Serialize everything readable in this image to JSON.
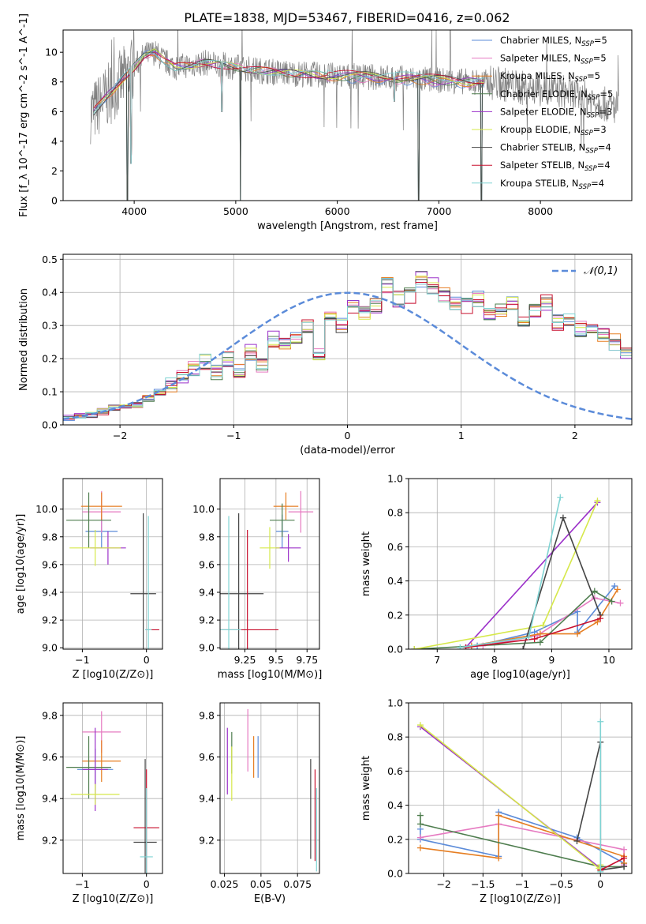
{
  "figure": {
    "title": "PLATE=1838, MJD=53467, FIBERID=0416, z=0.062"
  },
  "palette": {
    "chab_miles": "#5b8bd9",
    "salp_miles": "#e67ac1",
    "krou_miles": "#e67e22",
    "chab_elodie": "#4e7d4e",
    "salp_elodie": "#9b30c9",
    "krou_elodie": "#d6e84a",
    "chab_stelib": "#444444",
    "salp_stelib": "#c8102e",
    "krou_stelib": "#7fd3d3",
    "data": "#808080",
    "grid": "#b0b0b0",
    "normal": "#5b8bd9"
  },
  "chart_data": [
    {
      "id": "spectrum",
      "type": "line",
      "title": "PLATE=1838, MJD=53467, FIBERID=0416, z=0.062",
      "xlabel": "wavelength [Angstrom, rest frame]",
      "ylabel": "Flux [f_λ 10^-17 erg cm^-2 s^-1 A^-1]",
      "xlim": [
        3300,
        8900
      ],
      "ylim": [
        0,
        11.5
      ],
      "xticks": [
        4000,
        5000,
        6000,
        7000,
        8000
      ],
      "yticks": [
        0,
        2,
        4,
        6,
        8,
        10
      ],
      "grid": false,
      "legend_position": "top-right",
      "legend": [
        {
          "main": "Chabrier MILES, N",
          "sub": "SSP",
          "tail": "=5",
          "color_key": "chab_miles"
        },
        {
          "main": "Salpeter MILES, N",
          "sub": "SSP",
          "tail": "=5",
          "color_key": "salp_miles"
        },
        {
          "main": "Kroupa MILES, N",
          "sub": "SSP",
          "tail": "=5",
          "color_key": "krou_miles"
        },
        {
          "main": "Chabrier ELODIE, N",
          "sub": "SSP",
          "tail": "=5",
          "color_key": "chab_elodie"
        },
        {
          "main": "Salpeter ELODIE, N",
          "sub": "SSP",
          "tail": "=3",
          "color_key": "salp_elodie"
        },
        {
          "main": "Kroupa ELODIE, N",
          "sub": "SSP",
          "tail": "=3",
          "color_key": "krou_elodie"
        },
        {
          "main": "Chabrier STELIB, N",
          "sub": "SSP",
          "tail": "=4",
          "color_key": "chab_stelib"
        },
        {
          "main": "Salpeter STELIB, N",
          "sub": "SSP",
          "tail": "=4",
          "color_key": "salp_stelib"
        },
        {
          "main": "Kroupa STELIB, N",
          "sub": "SSP",
          "tail": "=4",
          "color_key": "krou_stelib"
        }
      ],
      "continuum_x": [
        3600,
        3700,
        3800,
        3900,
        4000,
        4100,
        4200,
        4300,
        4400,
        4500,
        4700,
        5000,
        5200,
        5500,
        6000,
        6500,
        7000,
        7400,
        7600,
        7800,
        8000,
        8200,
        8400,
        8600,
        8700
      ],
      "continuum_y": [
        6.0,
        6.8,
        7.5,
        8.3,
        9.0,
        9.8,
        10.0,
        9.4,
        9.0,
        9.1,
        9.3,
        9.0,
        8.8,
        8.6,
        8.4,
        8.3,
        8.1,
        8.0,
        7.9,
        7.6,
        7.5,
        7.4,
        7.0,
        6.6,
        6.3
      ],
      "model_x_range": [
        3600,
        7450
      ],
      "data_x_range": [
        3570,
        8770
      ],
      "model_dips": [
        {
          "x": 3934,
          "y": 0.0
        },
        {
          "x": 3969,
          "y": 2.5
        },
        {
          "x": 4861,
          "y": 6.0
        },
        {
          "x": 5046,
          "y": 0.0
        },
        {
          "x": 6563,
          "y": 6.7
        },
        {
          "x": 6800,
          "y": 0.0
        },
        {
          "x": 7420,
          "y": 0.0
        }
      ],
      "model_band_x": [
        5900,
        7800
      ],
      "model_band_y": [
        9.2,
        9.6
      ]
    },
    {
      "id": "residuals",
      "type": "histogram",
      "xlabel": "(data-model)/error",
      "ylabel": "Normed distribution",
      "xlim": [
        -2.5,
        2.5
      ],
      "ylim": [
        0,
        0.515
      ],
      "xticks": [
        -2,
        -1,
        0,
        1,
        2
      ],
      "yticks": [
        0.0,
        0.1,
        0.2,
        0.3,
        0.4,
        0.5
      ],
      "grid": true,
      "legend_position": "top-right",
      "legend": [
        {
          "label": "𝒩(0,1)",
          "color_key": "normal",
          "style": "dashed"
        }
      ],
      "bin_width": 0.1,
      "bin_start": -2.5,
      "base_values": [
        0.02,
        0.025,
        0.03,
        0.04,
        0.05,
        0.055,
        0.06,
        0.08,
        0.1,
        0.12,
        0.14,
        0.17,
        0.19,
        0.16,
        0.2,
        0.16,
        0.22,
        0.18,
        0.26,
        0.24,
        0.27,
        0.3,
        0.22,
        0.33,
        0.3,
        0.36,
        0.34,
        0.36,
        0.42,
        0.38,
        0.39,
        0.44,
        0.42,
        0.39,
        0.37,
        0.36,
        0.38,
        0.34,
        0.35,
        0.37,
        0.32,
        0.34,
        0.37,
        0.31,
        0.32,
        0.29,
        0.3,
        0.27,
        0.25,
        0.22,
        0.2,
        0.18,
        0.16,
        0.17,
        0.14,
        0.12,
        0.1,
        0.09,
        0.08,
        0.07,
        0.06,
        0.05,
        0.045,
        0.04,
        0.035,
        0.03,
        0.025,
        0.02,
        0.02,
        0.02
      ],
      "normal": {
        "mean": 0,
        "sigma": 1
      }
    },
    {
      "id": "age-vs-Z",
      "type": "scatter",
      "xlabel": "Z [log10(Z/Z⊙)]",
      "ylabel": "age  [log10(age/yr)]",
      "xlim": [
        -1.3,
        0.25
      ],
      "ylim": [
        8.99,
        10.22
      ],
      "xticks": [
        -1,
        0
      ],
      "yticks": [
        9.0,
        9.2,
        9.4,
        9.6,
        9.8,
        10.0
      ],
      "grid": true,
      "points": [
        {
          "x": -0.7,
          "y": 9.84,
          "xerr": 0.25,
          "yerr": 0.12,
          "color_key": "chab_miles"
        },
        {
          "x": -0.7,
          "y": 9.98,
          "xerr": 0.3,
          "yerr": 0.15,
          "color_key": "salp_miles"
        },
        {
          "x": -0.7,
          "y": 10.02,
          "xerr": 0.32,
          "yerr": 0.1,
          "color_key": "krou_miles"
        },
        {
          "x": -0.9,
          "y": 9.92,
          "xerr": 0.35,
          "yerr": 0.2,
          "color_key": "chab_elodie"
        },
        {
          "x": -0.6,
          "y": 9.72,
          "xerr": 0.28,
          "yerr": 0.12,
          "color_key": "salp_elodie"
        },
        {
          "x": -0.8,
          "y": 9.72,
          "xerr": 0.4,
          "yerr": 0.13,
          "color_key": "krou_elodie"
        },
        {
          "x": -0.05,
          "y": 9.39,
          "xerr": 0.2,
          "yerr": 0.58,
          "color_key": "chab_stelib"
        },
        {
          "x": 0.1,
          "y": 9.13,
          "xerr": 0.1,
          "yerr": 0.0,
          "color_key": "salp_stelib"
        },
        {
          "x": 0.03,
          "y": 9.13,
          "xerr": 0.05,
          "yerr": 0.82,
          "color_key": "krou_stelib"
        }
      ]
    },
    {
      "id": "age-vs-mass",
      "type": "scatter",
      "xlabel": "mass [log10(M/M⊙)]",
      "ylabel": "",
      "xlim": [
        9.05,
        9.85
      ],
      "ylim": [
        8.99,
        10.22
      ],
      "xticks": [
        9.25,
        9.5,
        9.75
      ],
      "yticks": [
        9.0,
        9.2,
        9.4,
        9.6,
        9.8,
        10.0
      ],
      "grid": true,
      "points": [
        {
          "x": 9.55,
          "y": 9.84,
          "xerr": 0.05,
          "yerr": 0.12,
          "color_key": "chab_miles"
        },
        {
          "x": 9.7,
          "y": 9.98,
          "xerr": 0.1,
          "yerr": 0.15,
          "color_key": "salp_miles"
        },
        {
          "x": 9.58,
          "y": 10.02,
          "xerr": 0.1,
          "yerr": 0.1,
          "color_key": "krou_miles"
        },
        {
          "x": 9.55,
          "y": 9.92,
          "xerr": 0.1,
          "yerr": 0.12,
          "color_key": "chab_elodie"
        },
        {
          "x": 9.6,
          "y": 9.72,
          "xerr": 0.1,
          "yerr": 0.1,
          "color_key": "salp_elodie"
        },
        {
          "x": 9.45,
          "y": 9.72,
          "xerr": 0.08,
          "yerr": 0.15,
          "color_key": "krou_elodie"
        },
        {
          "x": 9.2,
          "y": 9.39,
          "xerr": 0.2,
          "yerr": 0.58,
          "color_key": "chab_stelib"
        },
        {
          "x": 9.27,
          "y": 9.13,
          "xerr": 0.25,
          "yerr": 0.72,
          "color_key": "salp_stelib"
        },
        {
          "x": 9.12,
          "y": 9.13,
          "xerr": 0.1,
          "yerr": 0.82,
          "color_key": "krou_stelib"
        }
      ]
    },
    {
      "id": "mw-vs-age",
      "type": "line",
      "xlabel": "age  [log10(age/yr)]",
      "ylabel": "mass weight",
      "xlim": [
        6.5,
        10.4
      ],
      "ylim": [
        0,
        1.0
      ],
      "xticks": [
        7,
        8,
        9,
        10
      ],
      "yticks": [
        0.0,
        0.2,
        0.4,
        0.6,
        0.8,
        1.0
      ],
      "grid": true,
      "series": [
        {
          "color_key": "chab_miles",
          "x": [
            7.7,
            8.7,
            9.45,
            9.45,
            10.1
          ],
          "y": [
            0.02,
            0.1,
            0.22,
            0.1,
            0.37
          ]
        },
        {
          "color_key": "salp_miles",
          "x": [
            7.8,
            8.75,
            9.75,
            10.2
          ],
          "y": [
            0.02,
            0.08,
            0.3,
            0.27
          ]
        },
        {
          "color_key": "krou_miles",
          "x": [
            7.6,
            8.8,
            9.45,
            9.8,
            10.15
          ],
          "y": [
            0.02,
            0.09,
            0.09,
            0.16,
            0.35
          ]
        },
        {
          "color_key": "chab_elodie",
          "x": [
            6.6,
            8.8,
            9.75,
            10.05
          ],
          "y": [
            0.0,
            0.04,
            0.34,
            0.28
          ]
        },
        {
          "color_key": "salp_elodie",
          "x": [
            7.5,
            9.8
          ],
          "y": [
            0.01,
            0.86
          ]
        },
        {
          "color_key": "krou_elodie",
          "x": [
            6.6,
            8.85,
            9.8
          ],
          "y": [
            0.0,
            0.14,
            0.87
          ]
        },
        {
          "color_key": "chab_stelib",
          "x": [
            8.5,
            9.2,
            9.85
          ],
          "y": [
            0.0,
            0.77,
            0.2
          ]
        },
        {
          "color_key": "salp_stelib",
          "x": [
            7.5,
            8.7,
            9.85
          ],
          "y": [
            0.01,
            0.06,
            0.18
          ]
        },
        {
          "color_key": "krou_stelib",
          "x": [
            7.4,
            8.6,
            9.15
          ],
          "y": [
            0.01,
            0.07,
            0.89
          ]
        }
      ]
    },
    {
      "id": "mass-vs-Z",
      "type": "scatter",
      "xlabel": "Z [log10(Z/Z⊙)]",
      "ylabel": "mass [log10(M/M⊙)]",
      "xlim": [
        -1.3,
        0.25
      ],
      "ylim": [
        9.04,
        9.86
      ],
      "xticks": [
        -1,
        0
      ],
      "yticks": [
        9.2,
        9.4,
        9.6,
        9.8
      ],
      "grid": true,
      "points": [
        {
          "x": -0.8,
          "y": 9.54,
          "xerr": 0.28,
          "yerr": 0.1,
          "color_key": "chab_miles"
        },
        {
          "x": -0.7,
          "y": 9.72,
          "xerr": 0.3,
          "yerr": 0.1,
          "color_key": "salp_miles"
        },
        {
          "x": -0.7,
          "y": 9.58,
          "xerr": 0.3,
          "yerr": 0.1,
          "color_key": "krou_miles"
        },
        {
          "x": -0.9,
          "y": 9.55,
          "xerr": 0.35,
          "yerr": 0.15,
          "color_key": "chab_elodie"
        },
        {
          "x": -0.8,
          "y": 9.54,
          "xerr": 0.2,
          "yerr": 0.2,
          "color_key": "salp_elodie"
        },
        {
          "x": -0.8,
          "y": 9.42,
          "xerr": 0.38,
          "yerr": 0.05,
          "color_key": "krou_elodie"
        },
        {
          "x": -0.02,
          "y": 9.19,
          "xerr": 0.18,
          "yerr": 0.4,
          "color_key": "chab_stelib"
        },
        {
          "x": 0.0,
          "y": 9.26,
          "xerr": 0.2,
          "yerr": 0.28,
          "color_key": "salp_stelib"
        },
        {
          "x": 0.0,
          "y": 9.12,
          "xerr": 0.1,
          "yerr": 0.33,
          "color_key": "krou_stelib"
        }
      ]
    },
    {
      "id": "mass-vs-ebv",
      "type": "scatter",
      "xlabel": "E(B-V)",
      "ylabel": "",
      "xlim": [
        0.022,
        0.09
      ],
      "ylim": [
        9.04,
        9.86
      ],
      "xticks": [
        0.025,
        0.05,
        0.075
      ],
      "yticks": [
        9.2,
        9.4,
        9.6,
        9.8
      ],
      "grid": true,
      "points": [
        {
          "x": 0.048,
          "y": 9.6,
          "xerr": 0,
          "yerr": 0.1,
          "color_key": "chab_miles"
        },
        {
          "x": 0.041,
          "y": 9.68,
          "xerr": 0,
          "yerr": 0.15,
          "color_key": "salp_miles"
        },
        {
          "x": 0.045,
          "y": 9.6,
          "xerr": 0,
          "yerr": 0.1,
          "color_key": "krou_miles"
        },
        {
          "x": 0.03,
          "y": 9.62,
          "xerr": 0,
          "yerr": 0.1,
          "color_key": "chab_elodie"
        },
        {
          "x": 0.027,
          "y": 9.58,
          "xerr": 0,
          "yerr": 0.16,
          "color_key": "salp_elodie"
        },
        {
          "x": 0.03,
          "y": 9.52,
          "xerr": 0,
          "yerr": 0.13,
          "color_key": "krou_elodie"
        },
        {
          "x": 0.084,
          "y": 9.35,
          "xerr": 0,
          "yerr": 0.24,
          "color_key": "chab_stelib"
        },
        {
          "x": 0.087,
          "y": 9.32,
          "xerr": 0,
          "yerr": 0.22,
          "color_key": "salp_stelib"
        },
        {
          "x": 0.088,
          "y": 9.25,
          "xerr": 0,
          "yerr": 0.2,
          "color_key": "krou_stelib"
        }
      ]
    },
    {
      "id": "mw-vs-Z",
      "type": "line",
      "xlabel": "Z [log10(Z/Z⊙)]",
      "ylabel": "mass weight",
      "xlim": [
        -2.45,
        0.4
      ],
      "ylim": [
        0,
        1.0
      ],
      "xticks": [
        -2.0,
        -1.5,
        -1.0,
        -0.5,
        0.0
      ],
      "yticks": [
        0.0,
        0.2,
        0.4,
        0.6,
        0.8,
        1.0
      ],
      "grid": true,
      "series": [
        {
          "color_key": "chab_miles",
          "x": [
            -2.3,
            -2.3,
            -1.3,
            -1.3,
            -0.3,
            0.3
          ],
          "y": [
            0.26,
            0.2,
            0.1,
            0.36,
            0.21,
            0.06
          ]
        },
        {
          "color_key": "salp_miles",
          "x": [
            -2.3,
            -1.3,
            0.3,
            0.3
          ],
          "y": [
            0.21,
            0.29,
            0.14,
            0.05
          ]
        },
        {
          "color_key": "krou_miles",
          "x": [
            -2.3,
            -1.3,
            -1.3,
            0.3,
            0.3
          ],
          "y": [
            0.15,
            0.09,
            0.34,
            0.1,
            0.06
          ]
        },
        {
          "color_key": "chab_elodie",
          "x": [
            -2.3,
            -2.3,
            0.0,
            0.3
          ],
          "y": [
            0.34,
            0.29,
            0.04,
            0.04
          ]
        },
        {
          "color_key": "salp_elodie",
          "x": [
            -2.3,
            0.0,
            0.0
          ],
          "y": [
            0.86,
            0.03,
            0.03
          ]
        },
        {
          "color_key": "krou_elodie",
          "x": [
            -2.3,
            -0.02,
            0.0
          ],
          "y": [
            0.87,
            0.03,
            0.05
          ]
        },
        {
          "color_key": "chab_stelib",
          "x": [
            -0.3,
            0.0,
            0.0,
            0.3
          ],
          "y": [
            0.19,
            0.77,
            0.02,
            0.04
          ]
        },
        {
          "color_key": "salp_stelib",
          "x": [
            0.0,
            0.3
          ],
          "y": [
            0.02,
            0.09
          ]
        },
        {
          "color_key": "krou_stelib",
          "x": [
            0.0,
            0.0
          ],
          "y": [
            0.01,
            0.89
          ]
        }
      ]
    }
  ]
}
